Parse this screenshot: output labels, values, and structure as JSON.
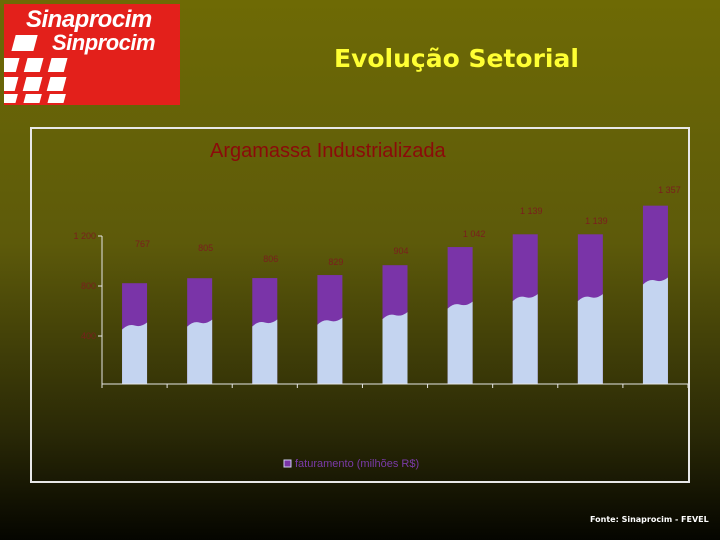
{
  "header": {
    "logo_line1": "Sinaprocim",
    "logo_line2": "Sinprocim",
    "headline": "Evolução Setorial"
  },
  "footer": {
    "source": "Fonte: Sinaprocim - FEVEL"
  },
  "colors": {
    "bar_top": "#7a34a8",
    "bar_bottom": "#c4d4f0",
    "value_label": "#7a1e1e",
    "axis": "#e6e6e6",
    "title": "#8b0a0a"
  },
  "chart_data": {
    "type": "bar",
    "title": "Argamassa Industrializada",
    "xlabel": "",
    "ylabel": "",
    "categories": [
      "",
      "",
      "",
      "",
      "",
      "",
      "",
      "",
      ""
    ],
    "series": [
      {
        "name": "faturamento (milhões R$)",
        "values": [
          767,
          805,
          806,
          829,
          904,
          1042,
          1139,
          1139,
          1357
        ]
      }
    ],
    "data_labels": [
      "767",
      "805",
      "806",
      "829",
      "904",
      "1 042",
      "1 139",
      "1 139",
      "1 357"
    ],
    "y_ticks": [
      "400",
      "800",
      "1 200"
    ],
    "y_tick_values": [
      400,
      800,
      1200
    ],
    "ylim": [
      0,
      1400
    ],
    "grid": false,
    "legend_position": "bottom"
  }
}
